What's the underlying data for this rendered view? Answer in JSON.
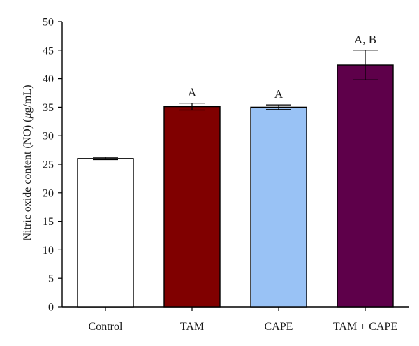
{
  "chart_data": {
    "type": "bar",
    "ylabel_prefix": "Nitric oxide content (NO) (",
    "ylabel_unit_mu": "μ",
    "ylabel_suffix": "g/mL)",
    "ylim": [
      0,
      50
    ],
    "yticks": [
      "0",
      "5",
      "10",
      "15",
      "20",
      "25",
      "30",
      "35",
      "40",
      "45",
      "50"
    ],
    "categories": [
      "Control",
      "TAM",
      "CAPE",
      "TAM + CAPE"
    ],
    "values": [
      26.0,
      35.1,
      35.0,
      42.4
    ],
    "errors": [
      0.2,
      0.6,
      0.4,
      2.6
    ],
    "annotations": [
      "",
      "A",
      "A",
      "A, B"
    ],
    "colors": [
      "#ffffff",
      "#800000",
      "#99c2f5",
      "#5e004a"
    ],
    "grid": false
  }
}
